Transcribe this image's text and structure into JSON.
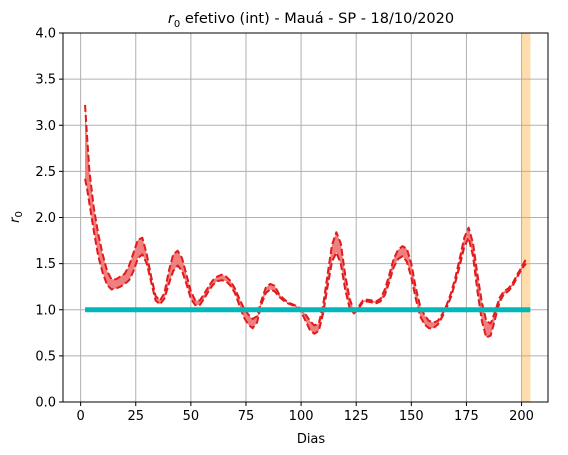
{
  "chart_data": {
    "type": "line",
    "title_sym": "r",
    "title_sub": "0",
    "title_rest": " efetivo (int) - Mauá - SP - 18/10/2020",
    "xlabel": "Dias",
    "ylabel_sym": "r",
    "ylabel_sub": "0",
    "xlim": [
      -8,
      212
    ],
    "ylim": [
      0,
      4
    ],
    "xticks": [
      0,
      25,
      50,
      75,
      100,
      125,
      150,
      175,
      200
    ],
    "yticks": [
      "0.0",
      "0.5",
      "1.0",
      "1.5",
      "2.0",
      "2.5",
      "3.0",
      "3.5",
      "4.0"
    ],
    "grid": true,
    "colors": {
      "upper": "#e31a1c",
      "lower": "#e31a1c",
      "band": "#f08080",
      "threshold": "#00b8b8",
      "highlight": "#ffdcaa"
    },
    "highlight_span": [
      200,
      204
    ],
    "threshold": {
      "y": 1.0,
      "x": [
        2,
        204
      ]
    },
    "series": [
      {
        "x": [
          2,
          3,
          4,
          6,
          8,
          10,
          12,
          14,
          16,
          18,
          20,
          22,
          24,
          26,
          28,
          30,
          32,
          34,
          36,
          38,
          40,
          42,
          44,
          46,
          48,
          50,
          52,
          54,
          56,
          58,
          60,
          62,
          64,
          66,
          68,
          70,
          72,
          74,
          76,
          78,
          80,
          82,
          84,
          86,
          88,
          90,
          92,
          94,
          96,
          98,
          100,
          102,
          104,
          106,
          108,
          110,
          112,
          114,
          116,
          118,
          120,
          122,
          124,
          126,
          128,
          130,
          132,
          134,
          136,
          138,
          140,
          142,
          144,
          146,
          148,
          150,
          152,
          154,
          156,
          158,
          160,
          162,
          164,
          166,
          168,
          170,
          172,
          174,
          176,
          178,
          180,
          182,
          184,
          186,
          188,
          190,
          192,
          194,
          196,
          198,
          200,
          202
        ],
        "upper": [
          3.22,
          2.85,
          2.5,
          2.1,
          1.82,
          1.6,
          1.42,
          1.33,
          1.33,
          1.36,
          1.39,
          1.48,
          1.62,
          1.76,
          1.78,
          1.6,
          1.36,
          1.15,
          1.1,
          1.18,
          1.42,
          1.6,
          1.64,
          1.56,
          1.38,
          1.2,
          1.1,
          1.1,
          1.17,
          1.25,
          1.32,
          1.36,
          1.38,
          1.36,
          1.31,
          1.23,
          1.12,
          1.02,
          0.95,
          0.9,
          0.93,
          1.1,
          1.24,
          1.28,
          1.26,
          1.17,
          1.12,
          1.08,
          1.06,
          1.04,
          1.01,
          0.95,
          0.88,
          0.83,
          0.85,
          1.05,
          1.38,
          1.7,
          1.84,
          1.72,
          1.38,
          1.12,
          0.99,
          1.03,
          1.1,
          1.11,
          1.1,
          1.09,
          1.12,
          1.22,
          1.38,
          1.55,
          1.65,
          1.69,
          1.66,
          1.5,
          1.24,
          1.04,
          0.94,
          0.88,
          0.86,
          0.88,
          0.95,
          1.05,
          1.18,
          1.35,
          1.56,
          1.78,
          1.89,
          1.72,
          1.38,
          1.08,
          0.88,
          0.85,
          0.98,
          1.13,
          1.2,
          1.23,
          1.29,
          1.38,
          1.46,
          1.55
        ],
        "lower": [
          2.42,
          2.3,
          2.15,
          1.85,
          1.58,
          1.4,
          1.27,
          1.22,
          1.23,
          1.25,
          1.28,
          1.32,
          1.42,
          1.56,
          1.6,
          1.5,
          1.3,
          1.1,
          1.06,
          1.12,
          1.28,
          1.42,
          1.48,
          1.42,
          1.28,
          1.12,
          1.05,
          1.05,
          1.12,
          1.2,
          1.27,
          1.31,
          1.32,
          1.31,
          1.26,
          1.18,
          1.05,
          0.92,
          0.84,
          0.8,
          0.86,
          1.06,
          1.18,
          1.22,
          1.2,
          1.14,
          1.1,
          1.07,
          1.05,
          1.02,
          0.98,
          0.88,
          0.78,
          0.74,
          0.77,
          0.96,
          1.25,
          1.52,
          1.62,
          1.5,
          1.22,
          1.02,
          0.96,
          1.01,
          1.08,
          1.09,
          1.08,
          1.07,
          1.09,
          1.16,
          1.3,
          1.46,
          1.55,
          1.58,
          1.52,
          1.35,
          1.12,
          0.93,
          0.84,
          0.8,
          0.8,
          0.84,
          0.92,
          1.02,
          1.14,
          1.3,
          1.48,
          1.68,
          1.78,
          1.58,
          1.2,
          0.88,
          0.7,
          0.72,
          0.9,
          1.08,
          1.17,
          1.2,
          1.26,
          1.35,
          1.44,
          1.5
        ]
      }
    ]
  }
}
